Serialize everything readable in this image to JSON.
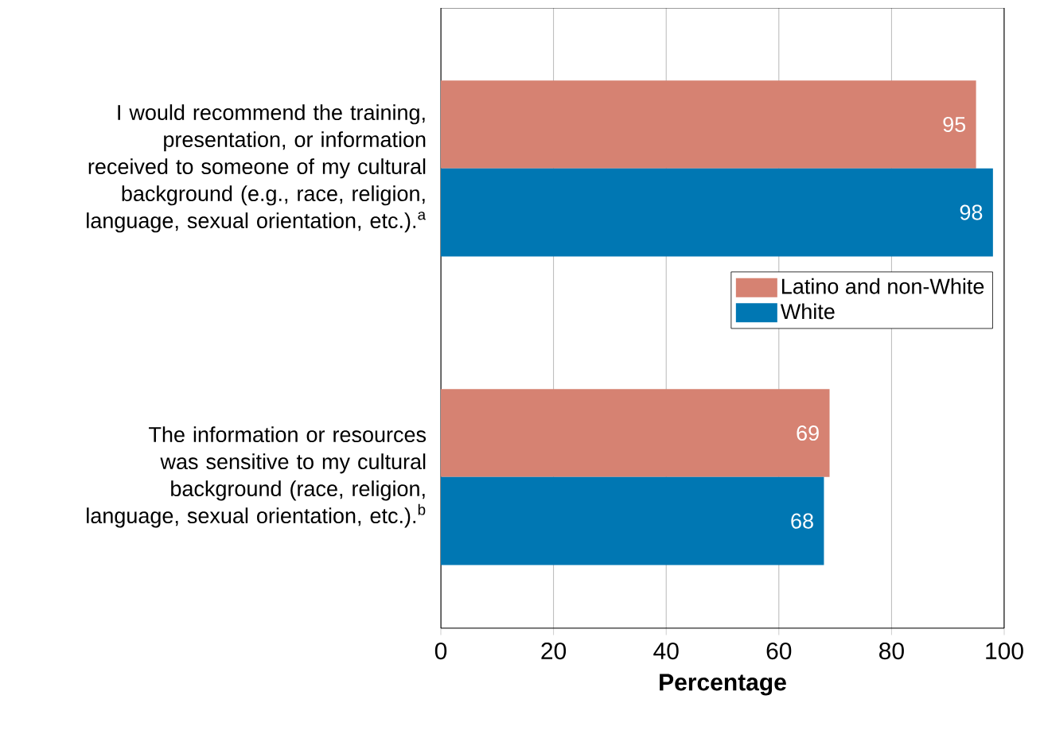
{
  "chart_data": {
    "type": "bar",
    "orientation": "horizontal",
    "xlabel": "Percentage",
    "categories": [
      "I would recommend the training, presentation, or information received to someone of my cultural background (e.g., race, religion, language, sexual orientation, etc.).$^{a}$",
      "The information or resources was sensitive to my cultural background (race, religion, language, sexual orientation, etc.).$^{b}$"
    ],
    "series": [
      {
        "name": "Latino and non-White",
        "color": "#d68272",
        "values": [
          95,
          69
        ]
      },
      {
        "name": "White",
        "color": "#0077b3",
        "values": [
          98,
          68
        ]
      }
    ],
    "xlim": [
      0,
      100
    ],
    "xticks": [
      0,
      20,
      40,
      60,
      80,
      100
    ],
    "grid": "x",
    "legend": "right",
    "data_labels": true
  }
}
